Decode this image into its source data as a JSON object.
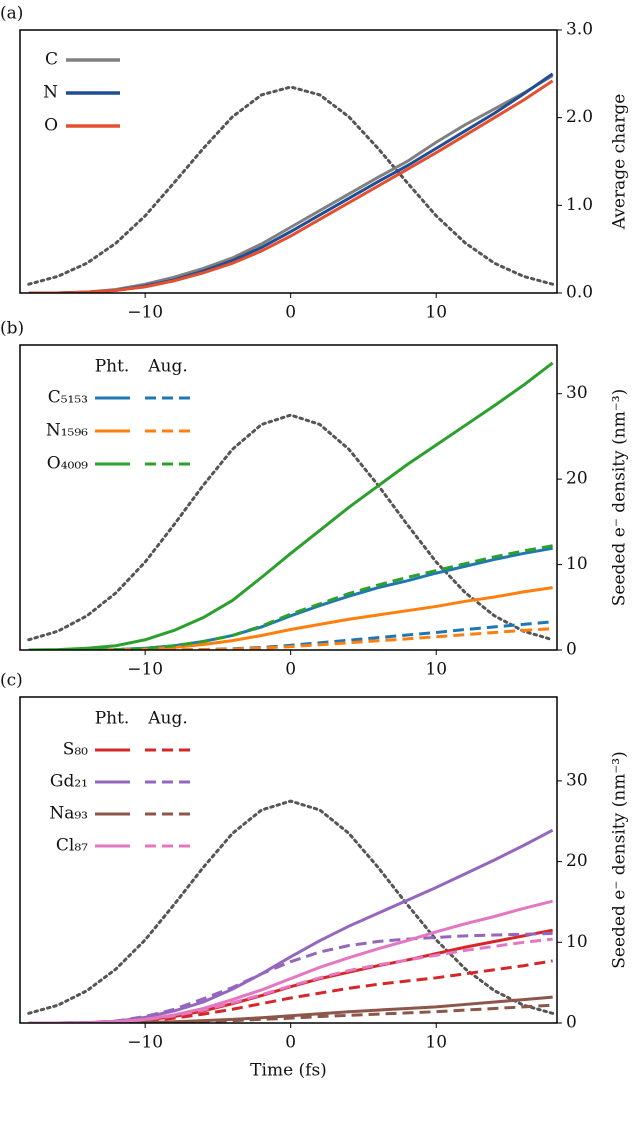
{
  "chart_data": [
    {
      "type": "line",
      "panel_label": "(a)",
      "y_label": "Average charge",
      "y_axis_side": "right",
      "xlim": [
        -18.6,
        18.3
      ],
      "xticks": [
        {
          "value": -10,
          "label": "−10"
        },
        0,
        10
      ],
      "ylim": [
        0,
        3.0
      ],
      "yticks": [
        {
          "value": 0,
          "label": "0.0"
        },
        {
          "value": 1,
          "label": "1.0"
        },
        {
          "value": 2,
          "label": "2.0"
        },
        {
          "value": 3,
          "label": "3.0"
        }
      ],
      "x": [
        -18,
        -16,
        -14,
        -12,
        -10,
        -8,
        -6,
        -4,
        -2,
        0,
        2,
        4,
        6,
        8,
        10,
        12,
        14,
        16,
        18
      ],
      "pulse": {
        "color": "#555555",
        "values": [
          0.1,
          0.19,
          0.34,
          0.57,
          0.88,
          1.26,
          1.65,
          2.01,
          2.26,
          2.35,
          2.26,
          2.01,
          1.65,
          1.26,
          0.88,
          0.57,
          0.34,
          0.19,
          0.1
        ]
      },
      "series": [
        {
          "name": "C",
          "color": "#808080",
          "values": [
            0,
            0,
            0.01,
            0.04,
            0.1,
            0.18,
            0.28,
            0.4,
            0.56,
            0.75,
            0.94,
            1.13,
            1.32,
            1.5,
            1.72,
            1.92,
            2.1,
            2.28,
            2.48
          ]
        },
        {
          "name": "N",
          "color": "#1f4e96",
          "values": [
            0,
            0,
            0.01,
            0.03,
            0.08,
            0.15,
            0.25,
            0.37,
            0.52,
            0.7,
            0.89,
            1.08,
            1.27,
            1.45,
            1.65,
            1.85,
            2.05,
            2.27,
            2.5
          ]
        },
        {
          "name": "O",
          "color": "#e2502f",
          "values": [
            0,
            0,
            0.01,
            0.03,
            0.07,
            0.14,
            0.23,
            0.34,
            0.48,
            0.65,
            0.84,
            1.03,
            1.22,
            1.41,
            1.6,
            1.8,
            2.0,
            2.2,
            2.42
          ]
        }
      ]
    },
    {
      "type": "line",
      "panel_label": "(b)",
      "y_label": "Seeded e⁻ density (nm⁻³)",
      "y_axis_side": "right",
      "legend_header": [
        "Pht.",
        "Aug."
      ],
      "xlim": [
        -18.6,
        18.3
      ],
      "xticks": [
        {
          "value": -10,
          "label": "−10"
        },
        0,
        10
      ],
      "ylim": [
        0,
        35.7
      ],
      "yticks": [
        0,
        10,
        20,
        30
      ],
      "x": [
        -18,
        -16,
        -14,
        -12,
        -10,
        -8,
        -6,
        -4,
        -2,
        0,
        2,
        4,
        6,
        8,
        10,
        12,
        14,
        16,
        18
      ],
      "pulse": {
        "color": "#555555",
        "values": [
          1.2,
          2.2,
          4.0,
          6.7,
          10.3,
          14.7,
          19.3,
          23.5,
          26.4,
          27.5,
          26.4,
          23.5,
          19.3,
          14.7,
          10.3,
          6.7,
          4.0,
          2.2,
          1.2
        ]
      },
      "series": [
        {
          "name": "C₅₁₅₃",
          "color": "#1f77b4",
          "values": [
            0,
            0,
            0,
            0.05,
            0.2,
            0.5,
            1,
            1.7,
            2.7,
            4,
            5.2,
            6.3,
            7.3,
            8.1,
            9,
            9.8,
            10.6,
            11.3,
            11.9
          ],
          "aug_values": [
            0,
            0,
            0,
            0,
            0,
            0.02,
            0.05,
            0.15,
            0.3,
            0.55,
            0.85,
            1.15,
            1.45,
            1.75,
            2.05,
            2.4,
            2.7,
            3.0,
            3.3
          ]
        },
        {
          "name": "N₁₅₉₆",
          "color": "#ff7f0e",
          "values": [
            0,
            0,
            0,
            0.02,
            0.1,
            0.3,
            0.65,
            1.1,
            1.7,
            2.4,
            3.0,
            3.6,
            4.1,
            4.6,
            5.1,
            5.7,
            6.2,
            6.8,
            7.3
          ],
          "aug_values": [
            0,
            0,
            0,
            0,
            0,
            0.01,
            0.04,
            0.1,
            0.22,
            0.4,
            0.62,
            0.85,
            1.08,
            1.3,
            1.55,
            1.8,
            2.05,
            2.3,
            2.5
          ]
        },
        {
          "name": "O₄₀₀₉",
          "color": "#2ca02c",
          "values": [
            0,
            0.05,
            0.2,
            0.5,
            1.2,
            2.3,
            3.8,
            5.8,
            8.5,
            11.3,
            14,
            16.7,
            19.2,
            21.7,
            24,
            26.3,
            28.6,
            31,
            33.6
          ],
          "aug_values": [
            0,
            0,
            0,
            0.05,
            0.2,
            0.5,
            1,
            1.7,
            2.8,
            4.2,
            5.4,
            6.6,
            7.6,
            8.5,
            9.3,
            10.1,
            10.9,
            11.6,
            12.2
          ]
        }
      ]
    },
    {
      "type": "line",
      "panel_label": "(c)",
      "y_label": "Seeded e⁻ density (nm⁻³)",
      "x_label": "Time (fs)",
      "y_axis_side": "right",
      "legend_header": [
        "Pht.",
        "Aug."
      ],
      "xlim": [
        -18.6,
        18.3
      ],
      "xticks": [
        {
          "value": -10,
          "label": "−10"
        },
        0,
        10
      ],
      "ylim": [
        0,
        40.4
      ],
      "yticks": [
        0,
        10,
        20,
        30
      ],
      "x": [
        -18,
        -16,
        -14,
        -12,
        -10,
        -8,
        -6,
        -4,
        -2,
        0,
        2,
        4,
        6,
        8,
        10,
        12,
        14,
        16,
        18
      ],
      "pulse": {
        "color": "#555555",
        "values": [
          1.2,
          2.2,
          4.0,
          6.7,
          10.3,
          14.7,
          19.3,
          23.5,
          26.4,
          27.5,
          26.4,
          23.5,
          19.3,
          14.7,
          10.3,
          6.7,
          4.0,
          2.2,
          1.2
        ]
      },
      "series": [
        {
          "name": "S₈₀",
          "color": "#d62728",
          "values": [
            0,
            0,
            0.02,
            0.1,
            0.35,
            0.8,
            1.5,
            2.4,
            3.4,
            4.5,
            5.5,
            6.3,
            7.1,
            7.8,
            8.6,
            9.4,
            10.1,
            10.8,
            11.5
          ],
          "aug_values": [
            0,
            0,
            0.02,
            0.08,
            0.25,
            0.6,
            1.1,
            1.7,
            2.4,
            3.1,
            3.7,
            4.3,
            4.8,
            5.2,
            5.6,
            6.1,
            6.6,
            7.1,
            7.7
          ]
        },
        {
          "name": "Gd₂₁",
          "color": "#9467bd",
          "values": [
            0,
            0,
            0.05,
            0.2,
            0.7,
            1.5,
            2.6,
            4.2,
            6.1,
            8.2,
            10.2,
            12,
            13.6,
            15.2,
            16.8,
            18.5,
            20.2,
            22,
            23.9
          ],
          "aug_values": [
            0,
            0,
            0.05,
            0.25,
            0.8,
            1.7,
            3,
            4.4,
            6.1,
            7.6,
            8.8,
            9.6,
            10.1,
            10.4,
            10.6,
            10.8,
            10.9,
            11,
            11.1
          ]
        },
        {
          "name": "Na₉₃",
          "color": "#8c564b",
          "values": [
            0,
            0,
            0,
            0.02,
            0.07,
            0.15,
            0.3,
            0.45,
            0.65,
            0.9,
            1.15,
            1.4,
            1.6,
            1.8,
            2.0,
            2.3,
            2.6,
            2.9,
            3.2
          ],
          "aug_values": [
            0,
            0,
            0,
            0.01,
            0.04,
            0.1,
            0.2,
            0.3,
            0.45,
            0.6,
            0.8,
            0.95,
            1.1,
            1.25,
            1.4,
            1.6,
            1.8,
            2.0,
            2.2
          ]
        },
        {
          "name": "Cl₈₇",
          "color": "#e377c2",
          "values": [
            0,
            0,
            0.03,
            0.15,
            0.45,
            1,
            1.8,
            2.9,
            4.1,
            5.5,
            6.9,
            8.1,
            9.2,
            10.2,
            11.3,
            12.3,
            13.2,
            14.2,
            15.1
          ],
          "aug_values": [
            0,
            0,
            0.03,
            0.15,
            0.4,
            0.9,
            1.6,
            2.5,
            3.5,
            4.6,
            5.6,
            6.5,
            7.2,
            7.8,
            8.4,
            9,
            9.5,
            10,
            10.4
          ]
        }
      ]
    }
  ]
}
